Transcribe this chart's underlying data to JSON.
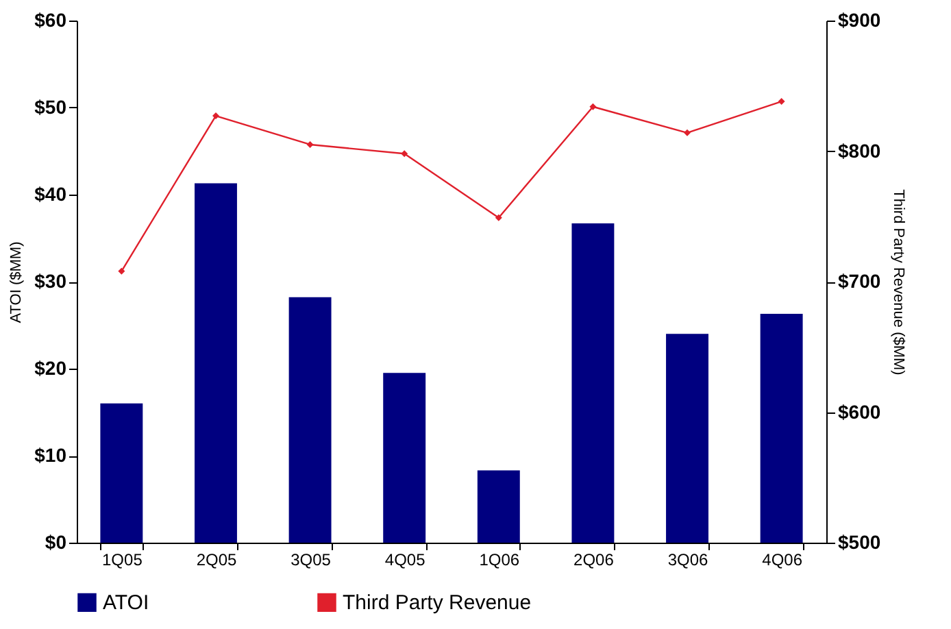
{
  "chart_data": {
    "type": "bar",
    "categories": [
      "1Q05",
      "2Q05",
      "3Q05",
      "4Q05",
      "1Q06",
      "2Q06",
      "3Q06",
      "4Q06"
    ],
    "ylabel": "ATOI ($MM)",
    "y2label": "Third Party Revenue ($MM)",
    "ylim": [
      0,
      60
    ],
    "yticks": [
      {
        "value": 0,
        "label": "$0"
      },
      {
        "value": 10,
        "label": "$10"
      },
      {
        "value": 20,
        "label": "$20"
      },
      {
        "value": 30,
        "label": "$30"
      },
      {
        "value": 40,
        "label": "$40"
      },
      {
        "value": 50,
        "label": "$50"
      },
      {
        "value": 60,
        "label": "$60"
      }
    ],
    "y2lim": [
      500,
      900
    ],
    "y2ticks": [
      {
        "value": 500,
        "label": "$500"
      },
      {
        "value": 600,
        "label": "$600"
      },
      {
        "value": 700,
        "label": "$700"
      },
      {
        "value": 800,
        "label": "$800"
      },
      {
        "value": 900,
        "label": "$900"
      }
    ],
    "series": [
      {
        "name": "ATOI",
        "color": "#000080",
        "values": [
          16.0,
          41.3,
          28.2,
          19.5,
          8.3,
          36.7,
          24.0,
          26.3
        ]
      },
      {
        "name": "Third Party Revenue",
        "type": "line",
        "axis": "y2",
        "color": "#e0202c",
        "marker": "diamond",
        "values": [
          708,
          827,
          805,
          798,
          749,
          834,
          814,
          838
        ]
      }
    ],
    "grid": false,
    "legend": "bottom"
  }
}
